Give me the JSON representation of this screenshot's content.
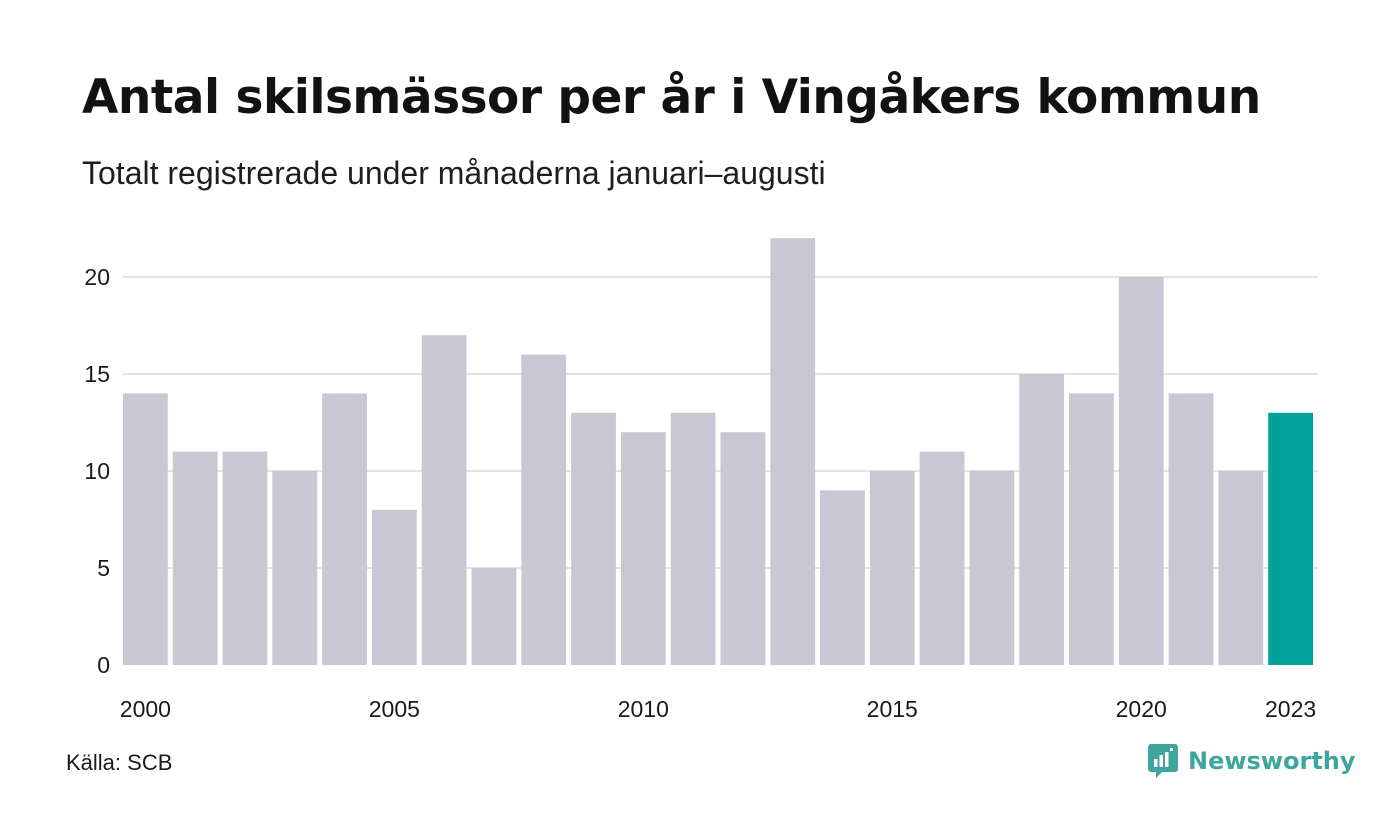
{
  "header": {
    "title": "Antal skilsmässor per år i Vingåkers kommun",
    "subtitle": "Totalt registrerade under månaderna januari–augusti"
  },
  "footer": {
    "source": "Källa: SCB",
    "logo_text": "Newsworthy",
    "logo_icon": "newsworthy-bar-chart-icon"
  },
  "colors": {
    "bar": "#c8c7d3",
    "highlight": "#00a39a",
    "grid": "#e3e3e3",
    "logo": "#3ea69c"
  },
  "chart_data": {
    "type": "bar",
    "title": "Antal skilsmässor per år i Vingåkers kommun",
    "subtitle": "Totalt registrerade under månaderna januari–augusti",
    "xlabel": "",
    "ylabel": "",
    "categories": [
      "2000",
      "2001",
      "2002",
      "2003",
      "2004",
      "2005",
      "2006",
      "2007",
      "2008",
      "2009",
      "2010",
      "2011",
      "2012",
      "2013",
      "2014",
      "2015",
      "2016",
      "2017",
      "2018",
      "2019",
      "2020",
      "2021",
      "2022",
      "2023"
    ],
    "values": [
      14,
      11,
      11,
      10,
      14,
      8,
      17,
      5,
      16,
      13,
      12,
      13,
      12,
      22,
      9,
      10,
      11,
      10,
      15,
      14,
      20,
      14,
      10,
      13
    ],
    "highlight_index": 23,
    "ylim": [
      0,
      22
    ],
    "yticks": [
      0,
      5,
      10,
      15,
      20
    ],
    "xtick_labels": [
      "2000",
      "2005",
      "2010",
      "2015",
      "2020",
      "2023"
    ],
    "grid": true,
    "legend": "none"
  }
}
